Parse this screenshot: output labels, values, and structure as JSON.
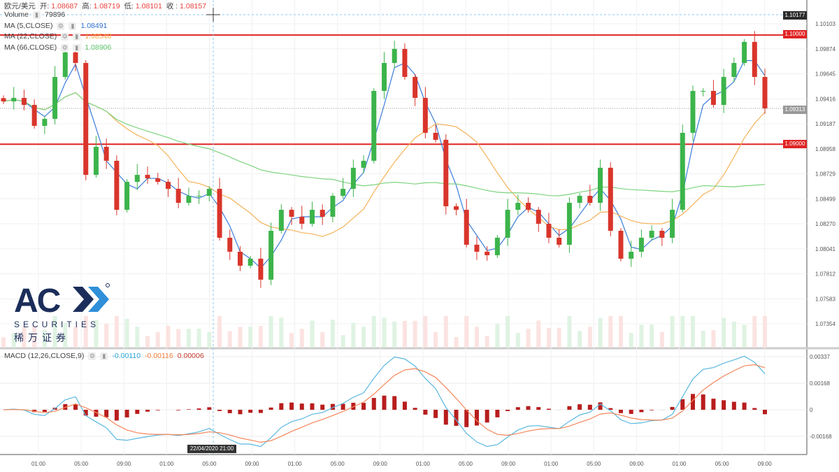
{
  "header": {
    "symbol": "欧元/美元",
    "open_label": "开:",
    "open": "1.08687",
    "high_label": "高:",
    "high": "1.08719",
    "low_label": "低:",
    "low": "1.08101",
    "close_label": "收 :",
    "close": "1.08157"
  },
  "indicators": {
    "volume": {
      "label": "Volume",
      "value": "79896"
    },
    "ma5": {
      "label": "MA (5,CLOSE)",
      "value": "1.08491",
      "color": "#3b7dd8"
    },
    "ma22": {
      "label": "MA (22,CLOSE)",
      "value": "1.08548",
      "color": "#f5b25a"
    },
    "ma66": {
      "label": "MA (66,CLOSE)",
      "value": "1.08906",
      "color": "#7dd37f"
    },
    "macd": {
      "label": "MACD (12,26,CLOSE,9)",
      "macd": "-0.00110",
      "signal": "-0.00116",
      "hist": "0.00006"
    }
  },
  "price_labels": {
    "crosshair": "1.10177",
    "upper_line": "1.10000",
    "last": "1.09313",
    "lower_line": "1.09000"
  },
  "crosshair_time": "22/04/2020   21:00",
  "logo": {
    "brand": "ACY",
    "sub": "SECURITIES",
    "cn": "稀 万 证 券"
  },
  "chart_data": {
    "type": "candlestick",
    "title": "欧元/美元",
    "y_ticks": [
      "1.10103",
      "1.09874",
      "1.09645",
      "1.09416",
      "1.09187",
      "1.08958",
      "1.08729",
      "1.08499",
      "1.08270",
      "1.08041",
      "1.07812",
      "1.07583",
      "1.07354"
    ],
    "macd_ticks": [
      "0.00337",
      "0.00168",
      "0",
      "-0.00168"
    ],
    "x_ticks": [
      "01:00",
      "05:00",
      "09:00",
      "01:00",
      "05:00",
      "09:00",
      "01:00",
      "05:00",
      "09:00",
      "01:00",
      "05:00",
      "09:00",
      "01:00",
      "05:00",
      "09:00",
      "01:00",
      "05:00",
      "09:00"
    ],
    "horizontal_lines": [
      1.1,
      1.09
    ],
    "closes": [
      1.09392,
      1.09424,
      1.0936,
      1.09168,
      1.09232,
      1.09616,
      1.09841,
      1.09744,
      1.08719,
      1.08976,
      1.08848,
      1.08399,
      1.08655,
      1.08719,
      1.08687,
      1.08655,
      1.08591,
      1.08463,
      1.08527,
      1.08527,
      1.08591,
      1.08143,
      1.08015,
      1.07887,
      1.07951,
      1.07759,
      1.08207,
      1.08399,
      1.08335,
      1.08271,
      1.08399,
      1.08335,
      1.08527,
      1.08591,
      1.08784,
      1.08848,
      1.09488,
      1.09744,
      1.09873,
      1.09616,
      1.09424,
      1.09104,
      1.0904,
      1.08431,
      1.08399,
      1.08079,
      1.08015,
      1.07983,
      1.08143,
      1.08399,
      1.08463,
      1.08399,
      1.08271,
      1.08143,
      1.08079,
      1.08463,
      1.08527,
      1.08463,
      1.08784,
      1.08207,
      1.07951,
      1.08015,
      1.08143,
      1.08207,
      1.08143,
      1.08399,
      1.09104,
      1.09488,
      1.09488,
      1.0936,
      1.09616,
      1.09744,
      1.09937,
      1.09616,
      1.09328
    ]
  }
}
